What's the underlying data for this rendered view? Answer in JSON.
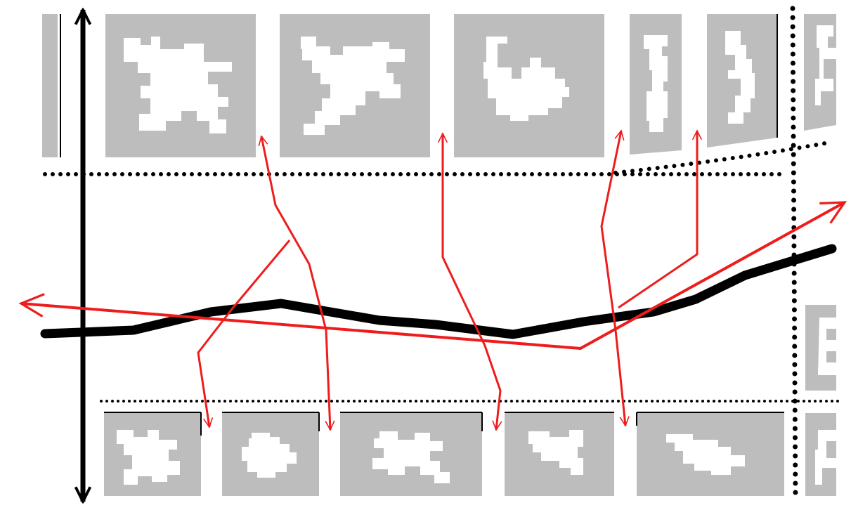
{
  "colors": {
    "tile": "#bdbdbd",
    "blob": "#ffffff",
    "axis": "#000000",
    "arrow": "#ee1c1c",
    "background": "#ffffff"
  },
  "top_row": {
    "tiles": [
      {
        "kind": "partial-left"
      },
      {
        "kind": "frame",
        "shape": "splayed-blob"
      },
      {
        "kind": "frame",
        "shape": "splayed-blob"
      },
      {
        "kind": "frame",
        "shape": "compact-blob"
      },
      {
        "kind": "frame-narrow",
        "shape": "vertical-strip"
      },
      {
        "kind": "frame-narrow",
        "shape": "vertical-strip"
      },
      {
        "kind": "partial-right"
      }
    ]
  },
  "bottom_row": {
    "tiles": [
      {
        "kind": "frame",
        "shape": "small-blob"
      },
      {
        "kind": "frame",
        "shape": "round-blob"
      },
      {
        "kind": "frame-wide",
        "shape": "elongated-blob"
      },
      {
        "kind": "frame",
        "shape": "small-blob"
      },
      {
        "kind": "frame-wide",
        "shape": "elongated-blob"
      },
      {
        "kind": "partial-right"
      }
    ]
  },
  "legend": {
    "vertical_axis": "double-headed-arrow",
    "trend_line": "thick-black-curve",
    "correspondence": "red-arrows",
    "separators": "dotted-lines"
  }
}
